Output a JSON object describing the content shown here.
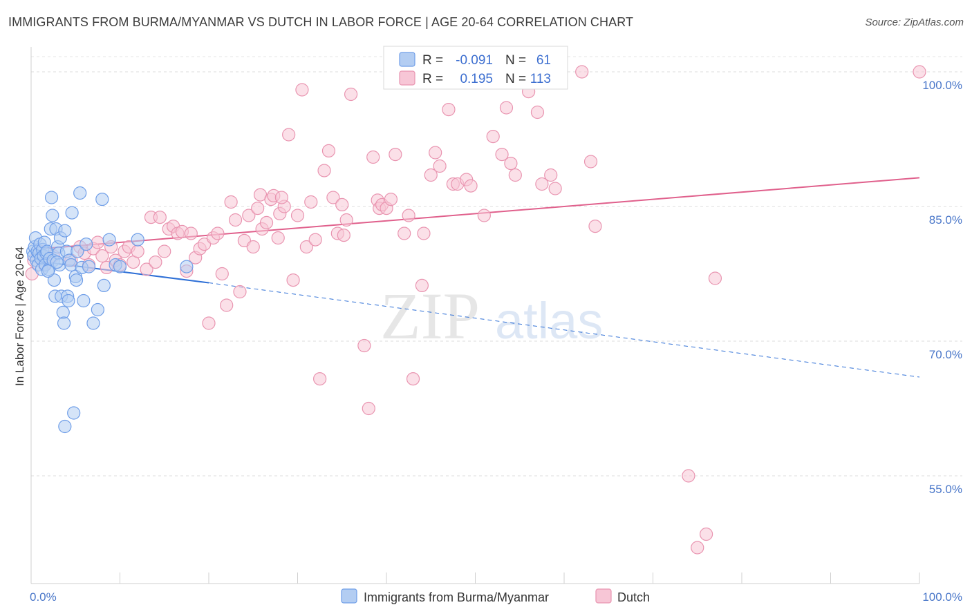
{
  "header": {
    "title": "IMMIGRANTS FROM BURMA/MYANMAR VS DUTCH IN LABOR FORCE | AGE 20-64 CORRELATION CHART",
    "source": "Source: ZipAtlas.com"
  },
  "watermark": {
    "zip": "ZIP",
    "atlas": "atlas"
  },
  "chart_data": {
    "type": "scatter",
    "title": "IMMIGRANTS FROM BURMA/MYANMAR VS DUTCH IN LABOR FORCE | AGE 20-64 CORRELATION CHART",
    "xlabel": "",
    "ylabel": "In Labor Force | Age 20-64",
    "xlim": [
      0,
      100
    ],
    "ylim": [
      43,
      102
    ],
    "x_tick_labels": [
      {
        "value": 0,
        "label": "0.0%"
      },
      {
        "value": 100,
        "label": "100.0%"
      }
    ],
    "y_tick_labels": [
      {
        "value": 100,
        "label": "100.0%"
      },
      {
        "value": 85,
        "label": "85.0%"
      },
      {
        "value": 70,
        "label": "70.0%"
      },
      {
        "value": 55,
        "label": "55.0%"
      }
    ],
    "grid": "horizontal dashed",
    "legend_position": "top-center",
    "stats": [
      {
        "r_label": "R =",
        "r": "-0.091",
        "n_label": "N =",
        "n": "61"
      },
      {
        "r_label": "R =",
        "r": "0.195",
        "n_label": "N =",
        "n": "113"
      }
    ],
    "series": [
      {
        "name": "Immigrants from Burma/Myanmar",
        "color": "#6f9ee8",
        "fill": "#b3cdf2",
        "trend": {
          "x0": 0,
          "y0": 79.0,
          "x1": 20,
          "y1": 76.5,
          "dash_to_x": 100,
          "dash_to_y": 66.0,
          "color": "#2e6fd6"
        },
        "points": [
          [
            0.2,
            80.0
          ],
          [
            0.3,
            79.5
          ],
          [
            0.4,
            80.5
          ],
          [
            0.5,
            81.5
          ],
          [
            0.6,
            79.0
          ],
          [
            0.7,
            80.0
          ],
          [
            0.8,
            78.5
          ],
          [
            0.9,
            79.8
          ],
          [
            1.0,
            80.8
          ],
          [
            1.1,
            79.2
          ],
          [
            1.2,
            78.0
          ],
          [
            1.3,
            80.2
          ],
          [
            1.4,
            79.5
          ],
          [
            1.5,
            81.0
          ],
          [
            1.6,
            78.5
          ],
          [
            1.7,
            79.8
          ],
          [
            1.8,
            80.0
          ],
          [
            2.0,
            78.0
          ],
          [
            2.1,
            79.2
          ],
          [
            2.2,
            82.5
          ],
          [
            2.3,
            86.0
          ],
          [
            2.4,
            84.0
          ],
          [
            2.5,
            79.0
          ],
          [
            2.6,
            76.8
          ],
          [
            2.7,
            75.0
          ],
          [
            2.8,
            82.5
          ],
          [
            3.0,
            80.5
          ],
          [
            3.1,
            79.8
          ],
          [
            3.2,
            78.5
          ],
          [
            3.3,
            81.5
          ],
          [
            3.4,
            75.0
          ],
          [
            3.6,
            73.2
          ],
          [
            3.7,
            72.0
          ],
          [
            3.8,
            82.3
          ],
          [
            4.0,
            80.0
          ],
          [
            4.1,
            75.0
          ],
          [
            4.2,
            74.5
          ],
          [
            4.3,
            79.0
          ],
          [
            4.5,
            78.5
          ],
          [
            4.6,
            84.3
          ],
          [
            4.8,
            62.0
          ],
          [
            5.0,
            77.2
          ],
          [
            5.2,
            80.0
          ],
          [
            5.5,
            86.5
          ],
          [
            5.7,
            78.2
          ],
          [
            5.9,
            74.5
          ],
          [
            6.2,
            80.8
          ],
          [
            6.5,
            78.3
          ],
          [
            7.0,
            72.0
          ],
          [
            7.5,
            73.5
          ],
          [
            8.0,
            85.8
          ],
          [
            8.2,
            76.2
          ],
          [
            8.8,
            81.3
          ],
          [
            9.5,
            78.5
          ],
          [
            10.0,
            78.3
          ],
          [
            12.0,
            81.3
          ],
          [
            17.5,
            78.3
          ],
          [
            3.8,
            60.5
          ],
          [
            2.9,
            78.8
          ],
          [
            1.9,
            77.8
          ],
          [
            5.1,
            76.8
          ]
        ]
      },
      {
        "name": "Dutch",
        "color": "#e994b0",
        "fill": "#f7c6d6",
        "trend": {
          "x0": 0,
          "y0": 80.2,
          "x1": 100,
          "y1": 88.2,
          "color": "#e0608c"
        },
        "points": [
          [
            0.1,
            77.5
          ],
          [
            0.3,
            79.0
          ],
          [
            1.0,
            80.0
          ],
          [
            1.5,
            78.5
          ],
          [
            2.5,
            79.5
          ],
          [
            4.5,
            79.0
          ],
          [
            5.5,
            80.5
          ],
          [
            6.0,
            79.8
          ],
          [
            6.5,
            78.5
          ],
          [
            7.0,
            80.3
          ],
          [
            7.5,
            81.0
          ],
          [
            8.0,
            79.5
          ],
          [
            8.5,
            78.2
          ],
          [
            9.0,
            80.5
          ],
          [
            9.5,
            79.0
          ],
          [
            10.0,
            78.5
          ],
          [
            10.5,
            80.0
          ],
          [
            11.0,
            80.5
          ],
          [
            11.5,
            78.8
          ],
          [
            12.0,
            80.0
          ],
          [
            13.0,
            78.0
          ],
          [
            13.5,
            83.8
          ],
          [
            14.0,
            78.8
          ],
          [
            14.5,
            83.8
          ],
          [
            15.0,
            80.0
          ],
          [
            15.5,
            82.5
          ],
          [
            16.0,
            82.8
          ],
          [
            16.5,
            82.0
          ],
          [
            17.0,
            82.2
          ],
          [
            17.5,
            77.8
          ],
          [
            18.0,
            82.0
          ],
          [
            18.5,
            79.3
          ],
          [
            19.0,
            80.3
          ],
          [
            19.5,
            80.8
          ],
          [
            20.0,
            72.0
          ],
          [
            20.5,
            81.5
          ],
          [
            21.0,
            82.0
          ],
          [
            21.5,
            77.5
          ],
          [
            22.0,
            74.0
          ],
          [
            22.5,
            85.5
          ],
          [
            23.0,
            83.5
          ],
          [
            23.5,
            75.5
          ],
          [
            24.0,
            81.2
          ],
          [
            24.5,
            84.0
          ],
          [
            25.0,
            80.5
          ],
          [
            25.5,
            84.8
          ],
          [
            25.8,
            86.3
          ],
          [
            26.0,
            82.5
          ],
          [
            26.5,
            83.2
          ],
          [
            27.0,
            85.8
          ],
          [
            27.3,
            86.2
          ],
          [
            27.8,
            81.5
          ],
          [
            28.0,
            84.2
          ],
          [
            28.5,
            85.0
          ],
          [
            29.0,
            93.0
          ],
          [
            29.5,
            76.8
          ],
          [
            30.0,
            84.0
          ],
          [
            30.5,
            98.0
          ],
          [
            31.0,
            80.5
          ],
          [
            31.5,
            85.5
          ],
          [
            32.0,
            81.3
          ],
          [
            32.5,
            65.8
          ],
          [
            33.0,
            89.0
          ],
          [
            33.5,
            91.2
          ],
          [
            34.0,
            86.0
          ],
          [
            34.5,
            82.0
          ],
          [
            35.0,
            85.2
          ],
          [
            35.5,
            83.5
          ],
          [
            36.0,
            97.5
          ],
          [
            37.5,
            69.5
          ],
          [
            38.0,
            62.5
          ],
          [
            38.5,
            90.5
          ],
          [
            39.0,
            85.7
          ],
          [
            39.2,
            84.8
          ],
          [
            39.5,
            85.2
          ],
          [
            40.0,
            84.8
          ],
          [
            40.5,
            85.8
          ],
          [
            41.0,
            90.8
          ],
          [
            42.0,
            82.0
          ],
          [
            42.5,
            84.0
          ],
          [
            43.0,
            65.8
          ],
          [
            44.0,
            76.2
          ],
          [
            45.0,
            88.5
          ],
          [
            45.5,
            91.0
          ],
          [
            46.0,
            89.5
          ],
          [
            47.0,
            95.8
          ],
          [
            47.5,
            87.5
          ],
          [
            48.0,
            87.5
          ],
          [
            49.0,
            88.0
          ],
          [
            49.5,
            87.3
          ],
          [
            51.0,
            84.0
          ],
          [
            52.0,
            92.8
          ],
          [
            53.0,
            90.8
          ],
          [
            54.0,
            89.8
          ],
          [
            54.5,
            88.5
          ],
          [
            56.0,
            97.8
          ],
          [
            57.0,
            95.5
          ],
          [
            57.5,
            87.5
          ],
          [
            58.5,
            88.5
          ],
          [
            59.0,
            87.0
          ],
          [
            62.0,
            100.0
          ],
          [
            63.0,
            90.0
          ],
          [
            63.5,
            82.8
          ],
          [
            74.0,
            55.0
          ],
          [
            75.0,
            47.0
          ],
          [
            76.0,
            48.5
          ],
          [
            77.0,
            77.0
          ],
          [
            100.0,
            100.0
          ],
          [
            28.2,
            86.0
          ],
          [
            35.2,
            81.8
          ],
          [
            44.2,
            82.0
          ],
          [
            53.5,
            96.0
          ]
        ]
      }
    ]
  },
  "legend": {
    "series": [
      "Immigrants from Burma/Myanmar",
      "Dutch"
    ]
  }
}
